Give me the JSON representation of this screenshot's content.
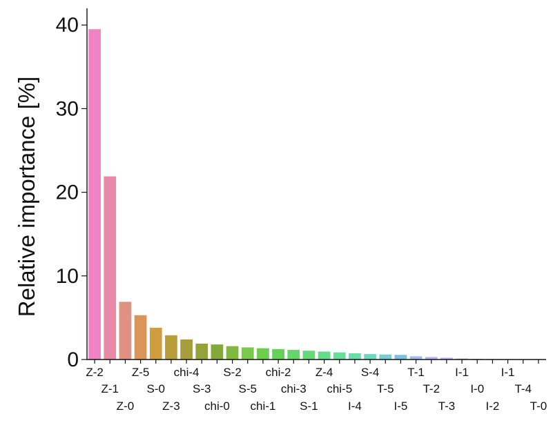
{
  "chart_data": {
    "type": "bar",
    "title": "",
    "xlabel": "",
    "ylabel": "Relative importance [%]",
    "ylim": [
      0,
      42
    ],
    "yticks": [
      0,
      10,
      20,
      30,
      40
    ],
    "grid": false,
    "legend": "none",
    "categories": [
      "Z-2",
      "Z-1",
      "Z-0",
      "Z-5",
      "S-0",
      "Z-3",
      "chi-4",
      "S-3",
      "chi-0",
      "S-2",
      "S-5",
      "chi-1",
      "chi-2",
      "chi-3",
      "S-1",
      "Z-4",
      "chi-5",
      "I-4",
      "S-4",
      "T-5",
      "I-5",
      "T-1",
      "T-2",
      "T-3",
      "I-1",
      "I-0",
      "I-2",
      "I-1",
      "T-4",
      "T-0"
    ],
    "values": [
      39.5,
      21.9,
      6.9,
      5.3,
      3.8,
      2.9,
      2.4,
      1.9,
      1.8,
      1.6,
      1.45,
      1.35,
      1.25,
      1.15,
      1.05,
      0.95,
      0.85,
      0.75,
      0.65,
      0.6,
      0.55,
      0.38,
      0.3,
      0.22,
      0.12,
      0.08,
      0.06,
      0.05,
      0.04,
      0.02
    ],
    "colors": [
      "#ee83c5",
      "#e88aa7",
      "#e09282",
      "#dc9458",
      "#cf9c3e",
      "#b89d3a",
      "#a59e3a",
      "#94a23b",
      "#84a93b",
      "#80b93f",
      "#7ac94c",
      "#6ccd4f",
      "#63d25a",
      "#66d66b",
      "#63d97a",
      "#62dc88",
      "#66de99",
      "#68dfab",
      "#6ad8be",
      "#74cfd0",
      "#7abfe2",
      "#9dbaf0",
      "#b2b3f3",
      "#c2acf3",
      "#cfaaf0",
      "#d8a8ec",
      "#e2a8e6",
      "#e9a7df",
      "#ee9ad9",
      "#f098d4"
    ]
  }
}
